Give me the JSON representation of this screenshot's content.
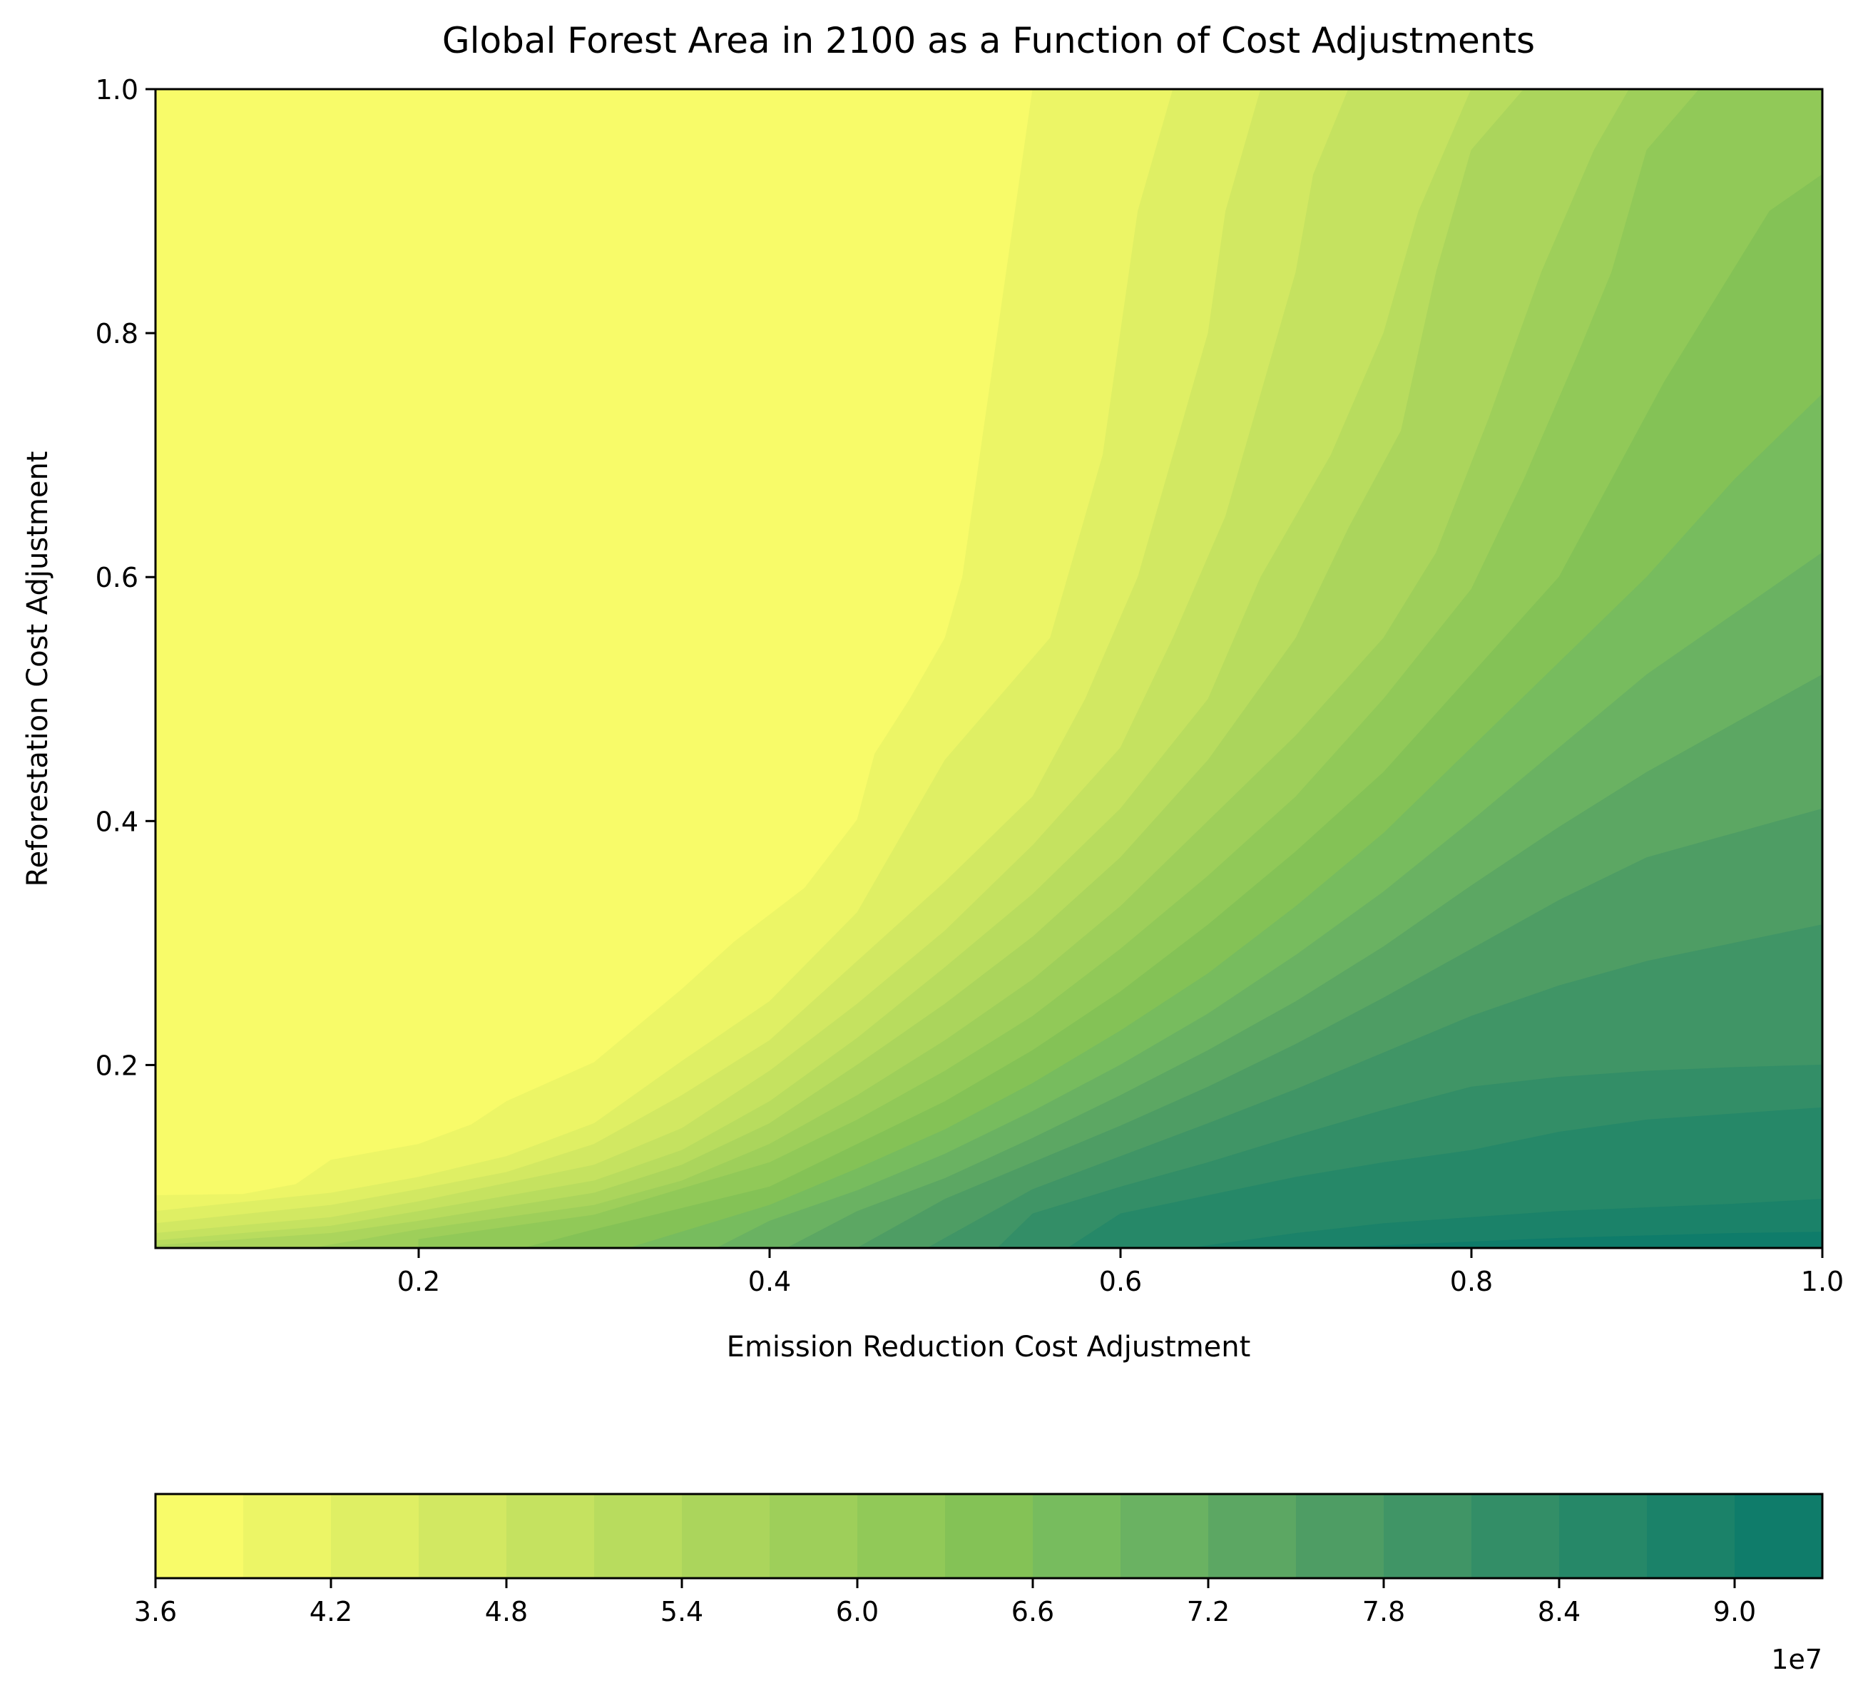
{
  "chart_data": {
    "type": "contourf",
    "title": "Global Forest Area in 2100 as a Function of Cost Adjustments",
    "xlabel": "Emission Reduction Cost Adjustment",
    "ylabel": "Reforestation Cost Adjustment",
    "xlim": [
      0.05,
      1.0
    ],
    "ylim": [
      0.05,
      1.0
    ],
    "x_ticks": [
      0.2,
      0.4,
      0.6,
      0.8,
      1.0
    ],
    "x_tick_labels": [
      "0.2",
      "0.4",
      "0.6",
      "0.8",
      "1.0"
    ],
    "y_ticks": [
      0.2,
      0.4,
      0.6,
      0.8,
      1.0
    ],
    "y_tick_labels": [
      "0.2",
      "0.4",
      "0.6",
      "0.8",
      "1.0"
    ],
    "colormap": "summer_r",
    "colorbar": {
      "orientation": "horizontal",
      "location": "bottom",
      "levels": [
        3.6,
        3.9,
        4.2,
        4.5,
        4.8,
        5.1,
        5.4,
        5.7,
        6.0,
        6.3,
        6.6,
        6.9,
        7.2,
        7.5,
        7.8,
        8.1,
        8.4,
        8.7,
        9.0,
        9.3
      ],
      "ticks": [
        3.6,
        4.2,
        4.8,
        5.4,
        6.0,
        6.6,
        7.2,
        7.8,
        8.4,
        9.0
      ],
      "tick_labels": [
        "3.6",
        "4.2",
        "4.8",
        "5.4",
        "6.0",
        "6.6",
        "7.2",
        "7.8",
        "8.4",
        "9.0"
      ],
      "offset_label": "1e7",
      "band_colors": [
        "#f8fb69",
        "#ecf566",
        "#dfef64",
        "#d2e862",
        "#c5e260",
        "#b8dc5e",
        "#abd55c",
        "#9ecf5a",
        "#91c958",
        "#84c256",
        "#77bc5e",
        "#6ab262",
        "#5ca763",
        "#4e9d64",
        "#409566",
        "#338e67",
        "#268868",
        "#1b8269",
        "#0f7c6a"
      ]
    },
    "contour_boundaries": [
      {
        "level": 3.9,
        "points": [
          [
            0.05,
            0.093
          ],
          [
            0.1,
            0.094
          ],
          [
            0.13,
            0.102
          ],
          [
            0.15,
            0.122
          ],
          [
            0.2,
            0.135
          ],
          [
            0.23,
            0.151
          ],
          [
            0.25,
            0.17
          ],
          [
            0.3,
            0.202
          ],
          [
            0.35,
            0.262
          ],
          [
            0.38,
            0.301
          ],
          [
            0.42,
            0.345
          ],
          [
            0.45,
            0.401
          ],
          [
            0.46,
            0.455
          ],
          [
            0.48,
            0.5
          ],
          [
            0.5,
            0.55
          ],
          [
            0.51,
            0.6
          ],
          [
            0.52,
            0.7
          ],
          [
            0.53,
            0.8
          ],
          [
            0.54,
            0.9
          ],
          [
            0.55,
            1.0
          ]
        ]
      },
      {
        "level": 4.2,
        "points": [
          [
            0.05,
            0.08
          ],
          [
            0.15,
            0.095
          ],
          [
            0.2,
            0.108
          ],
          [
            0.25,
            0.125
          ],
          [
            0.3,
            0.152
          ],
          [
            0.35,
            0.203
          ],
          [
            0.4,
            0.252
          ],
          [
            0.45,
            0.325
          ],
          [
            0.48,
            0.4
          ],
          [
            0.5,
            0.45
          ],
          [
            0.53,
            0.5
          ],
          [
            0.56,
            0.55
          ],
          [
            0.57,
            0.6
          ],
          [
            0.59,
            0.7
          ],
          [
            0.6,
            0.8
          ],
          [
            0.61,
            0.9
          ],
          [
            0.63,
            1.0
          ]
        ]
      },
      {
        "level": 4.5,
        "points": [
          [
            0.05,
            0.07
          ],
          [
            0.15,
            0.085
          ],
          [
            0.2,
            0.098
          ],
          [
            0.25,
            0.112
          ],
          [
            0.3,
            0.135
          ],
          [
            0.35,
            0.175
          ],
          [
            0.4,
            0.22
          ],
          [
            0.45,
            0.285
          ],
          [
            0.5,
            0.35
          ],
          [
            0.55,
            0.42
          ],
          [
            0.58,
            0.5
          ],
          [
            0.61,
            0.6
          ],
          [
            0.63,
            0.7
          ],
          [
            0.65,
            0.8
          ],
          [
            0.66,
            0.9
          ],
          [
            0.68,
            1.0
          ]
        ]
      },
      {
        "level": 4.8,
        "points": [
          [
            0.05,
            0.062
          ],
          [
            0.15,
            0.075
          ],
          [
            0.2,
            0.088
          ],
          [
            0.3,
            0.118
          ],
          [
            0.35,
            0.148
          ],
          [
            0.4,
            0.195
          ],
          [
            0.45,
            0.25
          ],
          [
            0.5,
            0.31
          ],
          [
            0.55,
            0.38
          ],
          [
            0.6,
            0.46
          ],
          [
            0.63,
            0.55
          ],
          [
            0.66,
            0.65
          ],
          [
            0.68,
            0.75
          ],
          [
            0.7,
            0.85
          ],
          [
            0.71,
            0.93
          ],
          [
            0.73,
            1.0
          ]
        ]
      },
      {
        "level": 5.1,
        "points": [
          [
            0.05,
            0.056
          ],
          [
            0.15,
            0.068
          ],
          [
            0.2,
            0.08
          ],
          [
            0.3,
            0.105
          ],
          [
            0.35,
            0.13
          ],
          [
            0.4,
            0.17
          ],
          [
            0.45,
            0.222
          ],
          [
            0.5,
            0.28
          ],
          [
            0.55,
            0.34
          ],
          [
            0.6,
            0.41
          ],
          [
            0.65,
            0.5
          ],
          [
            0.68,
            0.6
          ],
          [
            0.72,
            0.7
          ],
          [
            0.75,
            0.8
          ],
          [
            0.77,
            0.9
          ],
          [
            0.8,
            1.0
          ]
        ]
      },
      {
        "level": 5.4,
        "points": [
          [
            0.05,
            0.052
          ],
          [
            0.15,
            0.062
          ],
          [
            0.2,
            0.072
          ],
          [
            0.3,
            0.095
          ],
          [
            0.35,
            0.118
          ],
          [
            0.4,
            0.152
          ],
          [
            0.45,
            0.2
          ],
          [
            0.5,
            0.25
          ],
          [
            0.55,
            0.305
          ],
          [
            0.6,
            0.37
          ],
          [
            0.65,
            0.45
          ],
          [
            0.7,
            0.55
          ],
          [
            0.73,
            0.64
          ],
          [
            0.76,
            0.72
          ],
          [
            0.78,
            0.85
          ],
          [
            0.8,
            0.95
          ],
          [
            0.83,
            1.0
          ]
        ]
      },
      {
        "level": 5.7,
        "points": [
          [
            0.14,
            0.05
          ],
          [
            0.2,
            0.065
          ],
          [
            0.3,
            0.085
          ],
          [
            0.35,
            0.105
          ],
          [
            0.4,
            0.135
          ],
          [
            0.45,
            0.175
          ],
          [
            0.5,
            0.22
          ],
          [
            0.55,
            0.27
          ],
          [
            0.6,
            0.33
          ],
          [
            0.65,
            0.4
          ],
          [
            0.7,
            0.47
          ],
          [
            0.75,
            0.55
          ],
          [
            0.78,
            0.62
          ],
          [
            0.81,
            0.73
          ],
          [
            0.84,
            0.85
          ],
          [
            0.87,
            0.95
          ],
          [
            0.89,
            1.0
          ]
        ]
      },
      {
        "level": 6.0,
        "points": [
          [
            0.2,
            0.057
          ],
          [
            0.3,
            0.077
          ],
          [
            0.4,
            0.12
          ],
          [
            0.45,
            0.155
          ],
          [
            0.5,
            0.195
          ],
          [
            0.55,
            0.24
          ],
          [
            0.6,
            0.295
          ],
          [
            0.65,
            0.355
          ],
          [
            0.7,
            0.42
          ],
          [
            0.75,
            0.5
          ],
          [
            0.8,
            0.59
          ],
          [
            0.83,
            0.68
          ],
          [
            0.86,
            0.78
          ],
          [
            0.88,
            0.85
          ],
          [
            0.9,
            0.95
          ],
          [
            0.93,
            1.0
          ]
        ]
      },
      {
        "level": 6.3,
        "points": [
          [
            0.26,
            0.05
          ],
          [
            0.3,
            0.065
          ],
          [
            0.4,
            0.1
          ],
          [
            0.45,
            0.135
          ],
          [
            0.5,
            0.17
          ],
          [
            0.55,
            0.212
          ],
          [
            0.6,
            0.26
          ],
          [
            0.65,
            0.315
          ],
          [
            0.7,
            0.375
          ],
          [
            0.75,
            0.44
          ],
          [
            0.8,
            0.52
          ],
          [
            0.85,
            0.6
          ],
          [
            0.88,
            0.68
          ],
          [
            0.91,
            0.76
          ],
          [
            0.94,
            0.83
          ],
          [
            0.97,
            0.9
          ],
          [
            1.0,
            0.93
          ]
        ]
      },
      {
        "level": 6.6,
        "points": [
          [
            0.32,
            0.05
          ],
          [
            0.4,
            0.085
          ],
          [
            0.45,
            0.115
          ],
          [
            0.5,
            0.147
          ],
          [
            0.55,
            0.185
          ],
          [
            0.6,
            0.228
          ],
          [
            0.65,
            0.275
          ],
          [
            0.7,
            0.33
          ],
          [
            0.75,
            0.39
          ],
          [
            0.8,
            0.46
          ],
          [
            0.85,
            0.53
          ],
          [
            0.9,
            0.6
          ],
          [
            0.95,
            0.68
          ],
          [
            1.0,
            0.75
          ]
        ]
      },
      {
        "level": 6.9,
        "points": [
          [
            0.37,
            0.05
          ],
          [
            0.4,
            0.072
          ],
          [
            0.45,
            0.097
          ],
          [
            0.5,
            0.127
          ],
          [
            0.55,
            0.162
          ],
          [
            0.6,
            0.2
          ],
          [
            0.65,
            0.242
          ],
          [
            0.7,
            0.29
          ],
          [
            0.75,
            0.342
          ],
          [
            0.8,
            0.4
          ],
          [
            0.85,
            0.46
          ],
          [
            0.9,
            0.52
          ],
          [
            0.95,
            0.57
          ],
          [
            1.0,
            0.62
          ]
        ]
      },
      {
        "level": 7.2,
        "points": [
          [
            0.41,
            0.05
          ],
          [
            0.45,
            0.08
          ],
          [
            0.5,
            0.107
          ],
          [
            0.55,
            0.14
          ],
          [
            0.6,
            0.175
          ],
          [
            0.65,
            0.212
          ],
          [
            0.7,
            0.252
          ],
          [
            0.75,
            0.297
          ],
          [
            0.8,
            0.347
          ],
          [
            0.85,
            0.395
          ],
          [
            0.9,
            0.44
          ],
          [
            0.95,
            0.48
          ],
          [
            1.0,
            0.52
          ]
        ]
      },
      {
        "level": 7.5,
        "points": [
          [
            0.45,
            0.05
          ],
          [
            0.5,
            0.09
          ],
          [
            0.55,
            0.12
          ],
          [
            0.6,
            0.15
          ],
          [
            0.65,
            0.182
          ],
          [
            0.7,
            0.217
          ],
          [
            0.75,
            0.255
          ],
          [
            0.8,
            0.295
          ],
          [
            0.85,
            0.335
          ],
          [
            0.9,
            0.37
          ],
          [
            0.95,
            0.39
          ],
          [
            1.0,
            0.41
          ]
        ]
      },
      {
        "level": 7.8,
        "points": [
          [
            0.49,
            0.05
          ],
          [
            0.55,
            0.098
          ],
          [
            0.6,
            0.125
          ],
          [
            0.65,
            0.152
          ],
          [
            0.7,
            0.18
          ],
          [
            0.75,
            0.21
          ],
          [
            0.8,
            0.24
          ],
          [
            0.85,
            0.265
          ],
          [
            0.9,
            0.285
          ],
          [
            0.95,
            0.3
          ],
          [
            1.0,
            0.315
          ]
        ]
      },
      {
        "level": 8.1,
        "points": [
          [
            0.53,
            0.05
          ],
          [
            0.55,
            0.078
          ],
          [
            0.6,
            0.1
          ],
          [
            0.65,
            0.12
          ],
          [
            0.7,
            0.142
          ],
          [
            0.75,
            0.163
          ],
          [
            0.8,
            0.182
          ],
          [
            0.85,
            0.19
          ],
          [
            0.9,
            0.195
          ],
          [
            0.95,
            0.198
          ],
          [
            1.0,
            0.2
          ]
        ]
      },
      {
        "level": 8.4,
        "points": [
          [
            0.57,
            0.05
          ],
          [
            0.6,
            0.078
          ],
          [
            0.65,
            0.093
          ],
          [
            0.7,
            0.108
          ],
          [
            0.75,
            0.12
          ],
          [
            0.8,
            0.13
          ],
          [
            0.85,
            0.145
          ],
          [
            0.9,
            0.155
          ],
          [
            0.95,
            0.16
          ],
          [
            1.0,
            0.165
          ]
        ]
      },
      {
        "level": 8.7,
        "points": [
          [
            0.64,
            0.05
          ],
          [
            0.7,
            0.062
          ],
          [
            0.75,
            0.07
          ],
          [
            0.8,
            0.075
          ],
          [
            0.85,
            0.08
          ],
          [
            0.9,
            0.083
          ],
          [
            0.95,
            0.086
          ],
          [
            1.0,
            0.09
          ]
        ]
      },
      {
        "level": 9.0,
        "points": [
          [
            0.72,
            0.05
          ],
          [
            0.8,
            0.055
          ],
          [
            0.85,
            0.058
          ],
          [
            0.9,
            0.06
          ],
          [
            0.95,
            0.062
          ],
          [
            1.0,
            0.063
          ]
        ]
      }
    ]
  }
}
